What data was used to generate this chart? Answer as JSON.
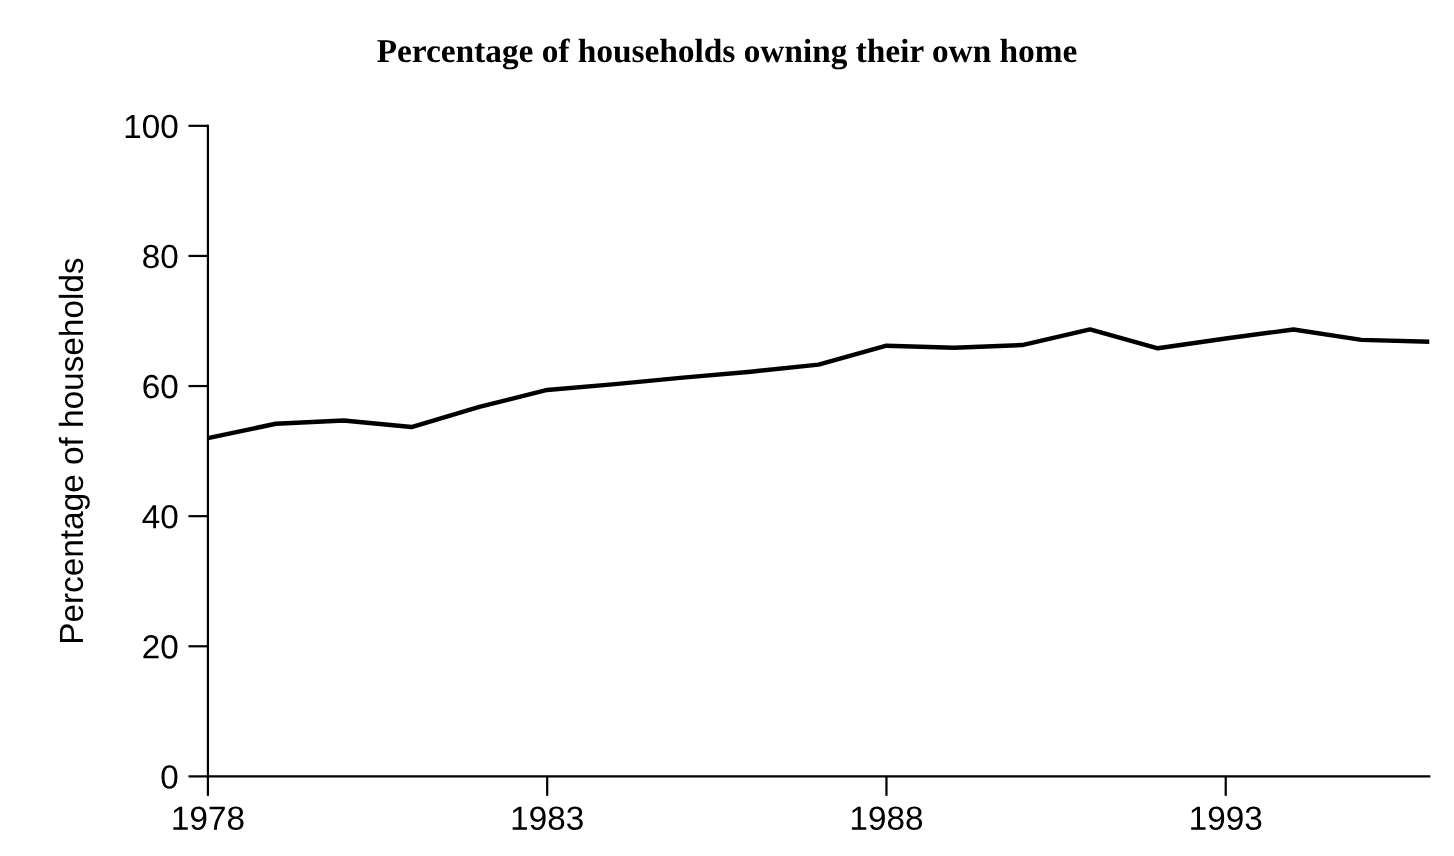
{
  "chart_data": {
    "type": "line",
    "title": "Percentage of households owning their own home",
    "ylabel": "Percentage of households",
    "x": [
      1978,
      1979,
      1980,
      1981,
      1982,
      1983,
      1984,
      1985,
      1986,
      1987,
      1988,
      1989,
      1990,
      1991,
      1992,
      1993,
      1994,
      1995,
      1996
    ],
    "series": [
      {
        "color": "#000000",
        "values": [
          52.0,
          54.2,
          54.7,
          53.7,
          56.8,
          59.4,
          60.3,
          61.3,
          62.2,
          63.3,
          66.2,
          65.9,
          66.3,
          68.7,
          65.8,
          67.3,
          68.7,
          67.1,
          66.8
        ]
      }
    ],
    "xlim": [
      1978,
      1996
    ],
    "ylim": [
      0,
      100
    ],
    "xticks": [
      1978,
      1983,
      1988,
      1993
    ],
    "yticks": [
      0,
      20,
      40,
      60,
      80,
      100
    ],
    "grid": false,
    "legend": false,
    "marker": "none",
    "line_style": "solid"
  }
}
